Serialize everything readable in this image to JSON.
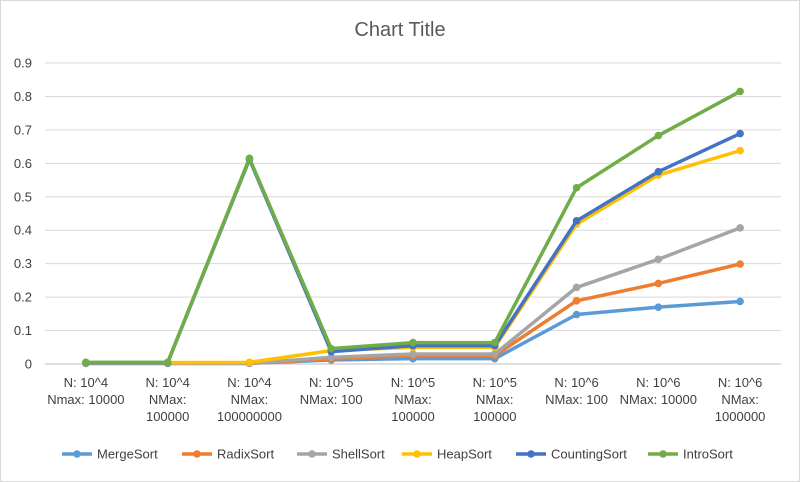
{
  "chart_data": {
    "type": "line",
    "title": "Chart Title",
    "xlabel": "",
    "ylabel": "",
    "ylim": [
      0,
      0.9
    ],
    "yticks": [
      "0",
      "0.1",
      "0.2",
      "0.3",
      "0.4",
      "0.5",
      "0.6",
      "0.7",
      "0.8",
      "0.9"
    ],
    "grid": true,
    "legend": "bottom",
    "categories": [
      [
        "N: 10^4",
        "Nmax: 10000"
      ],
      [
        "N: 10^4",
        "NMax:",
        "100000"
      ],
      [
        "N: 10^4",
        "NMax:",
        "100000000"
      ],
      [
        "N: 10^5",
        "NMax: 100"
      ],
      [
        "N: 10^5",
        "NMax:",
        "100000"
      ],
      [
        "N: 10^5",
        "NMax:",
        "100000"
      ],
      [
        "N: 10^6",
        "NMax: 100"
      ],
      [
        "N: 10^6",
        "NMax: 10000"
      ],
      [
        "N: 10^6",
        "NMax:",
        "1000000"
      ]
    ],
    "series": [
      {
        "name": "MergeSort",
        "color": "#5B9BD5",
        "values": [
          0.002,
          0.002,
          0.002,
          0.012,
          0.016,
          0.016,
          0.148,
          0.17,
          0.187
        ]
      },
      {
        "name": "RadixSort",
        "color": "#ED7D31",
        "values": [
          0.002,
          0.002,
          0.002,
          0.015,
          0.025,
          0.025,
          0.189,
          0.241,
          0.299
        ]
      },
      {
        "name": "ShellSort",
        "color": "#A5A5A5",
        "values": [
          0.002,
          0.002,
          0.002,
          0.02,
          0.03,
          0.03,
          0.229,
          0.313,
          0.407
        ]
      },
      {
        "name": "HeapSort",
        "color": "#FFC000",
        "values": [
          0.004,
          0.004,
          0.005,
          0.04,
          0.05,
          0.05,
          0.418,
          0.565,
          0.638
        ]
      },
      {
        "name": "CountingSort",
        "color": "#4472C4",
        "values": [
          0.004,
          0.004,
          0.612,
          0.037,
          0.055,
          0.055,
          0.428,
          0.575,
          0.689
        ]
      },
      {
        "name": "IntroSort",
        "color": "#70AD47",
        "values": [
          0.005,
          0.005,
          0.615,
          0.046,
          0.064,
          0.064,
          0.527,
          0.683,
          0.815
        ]
      }
    ]
  }
}
